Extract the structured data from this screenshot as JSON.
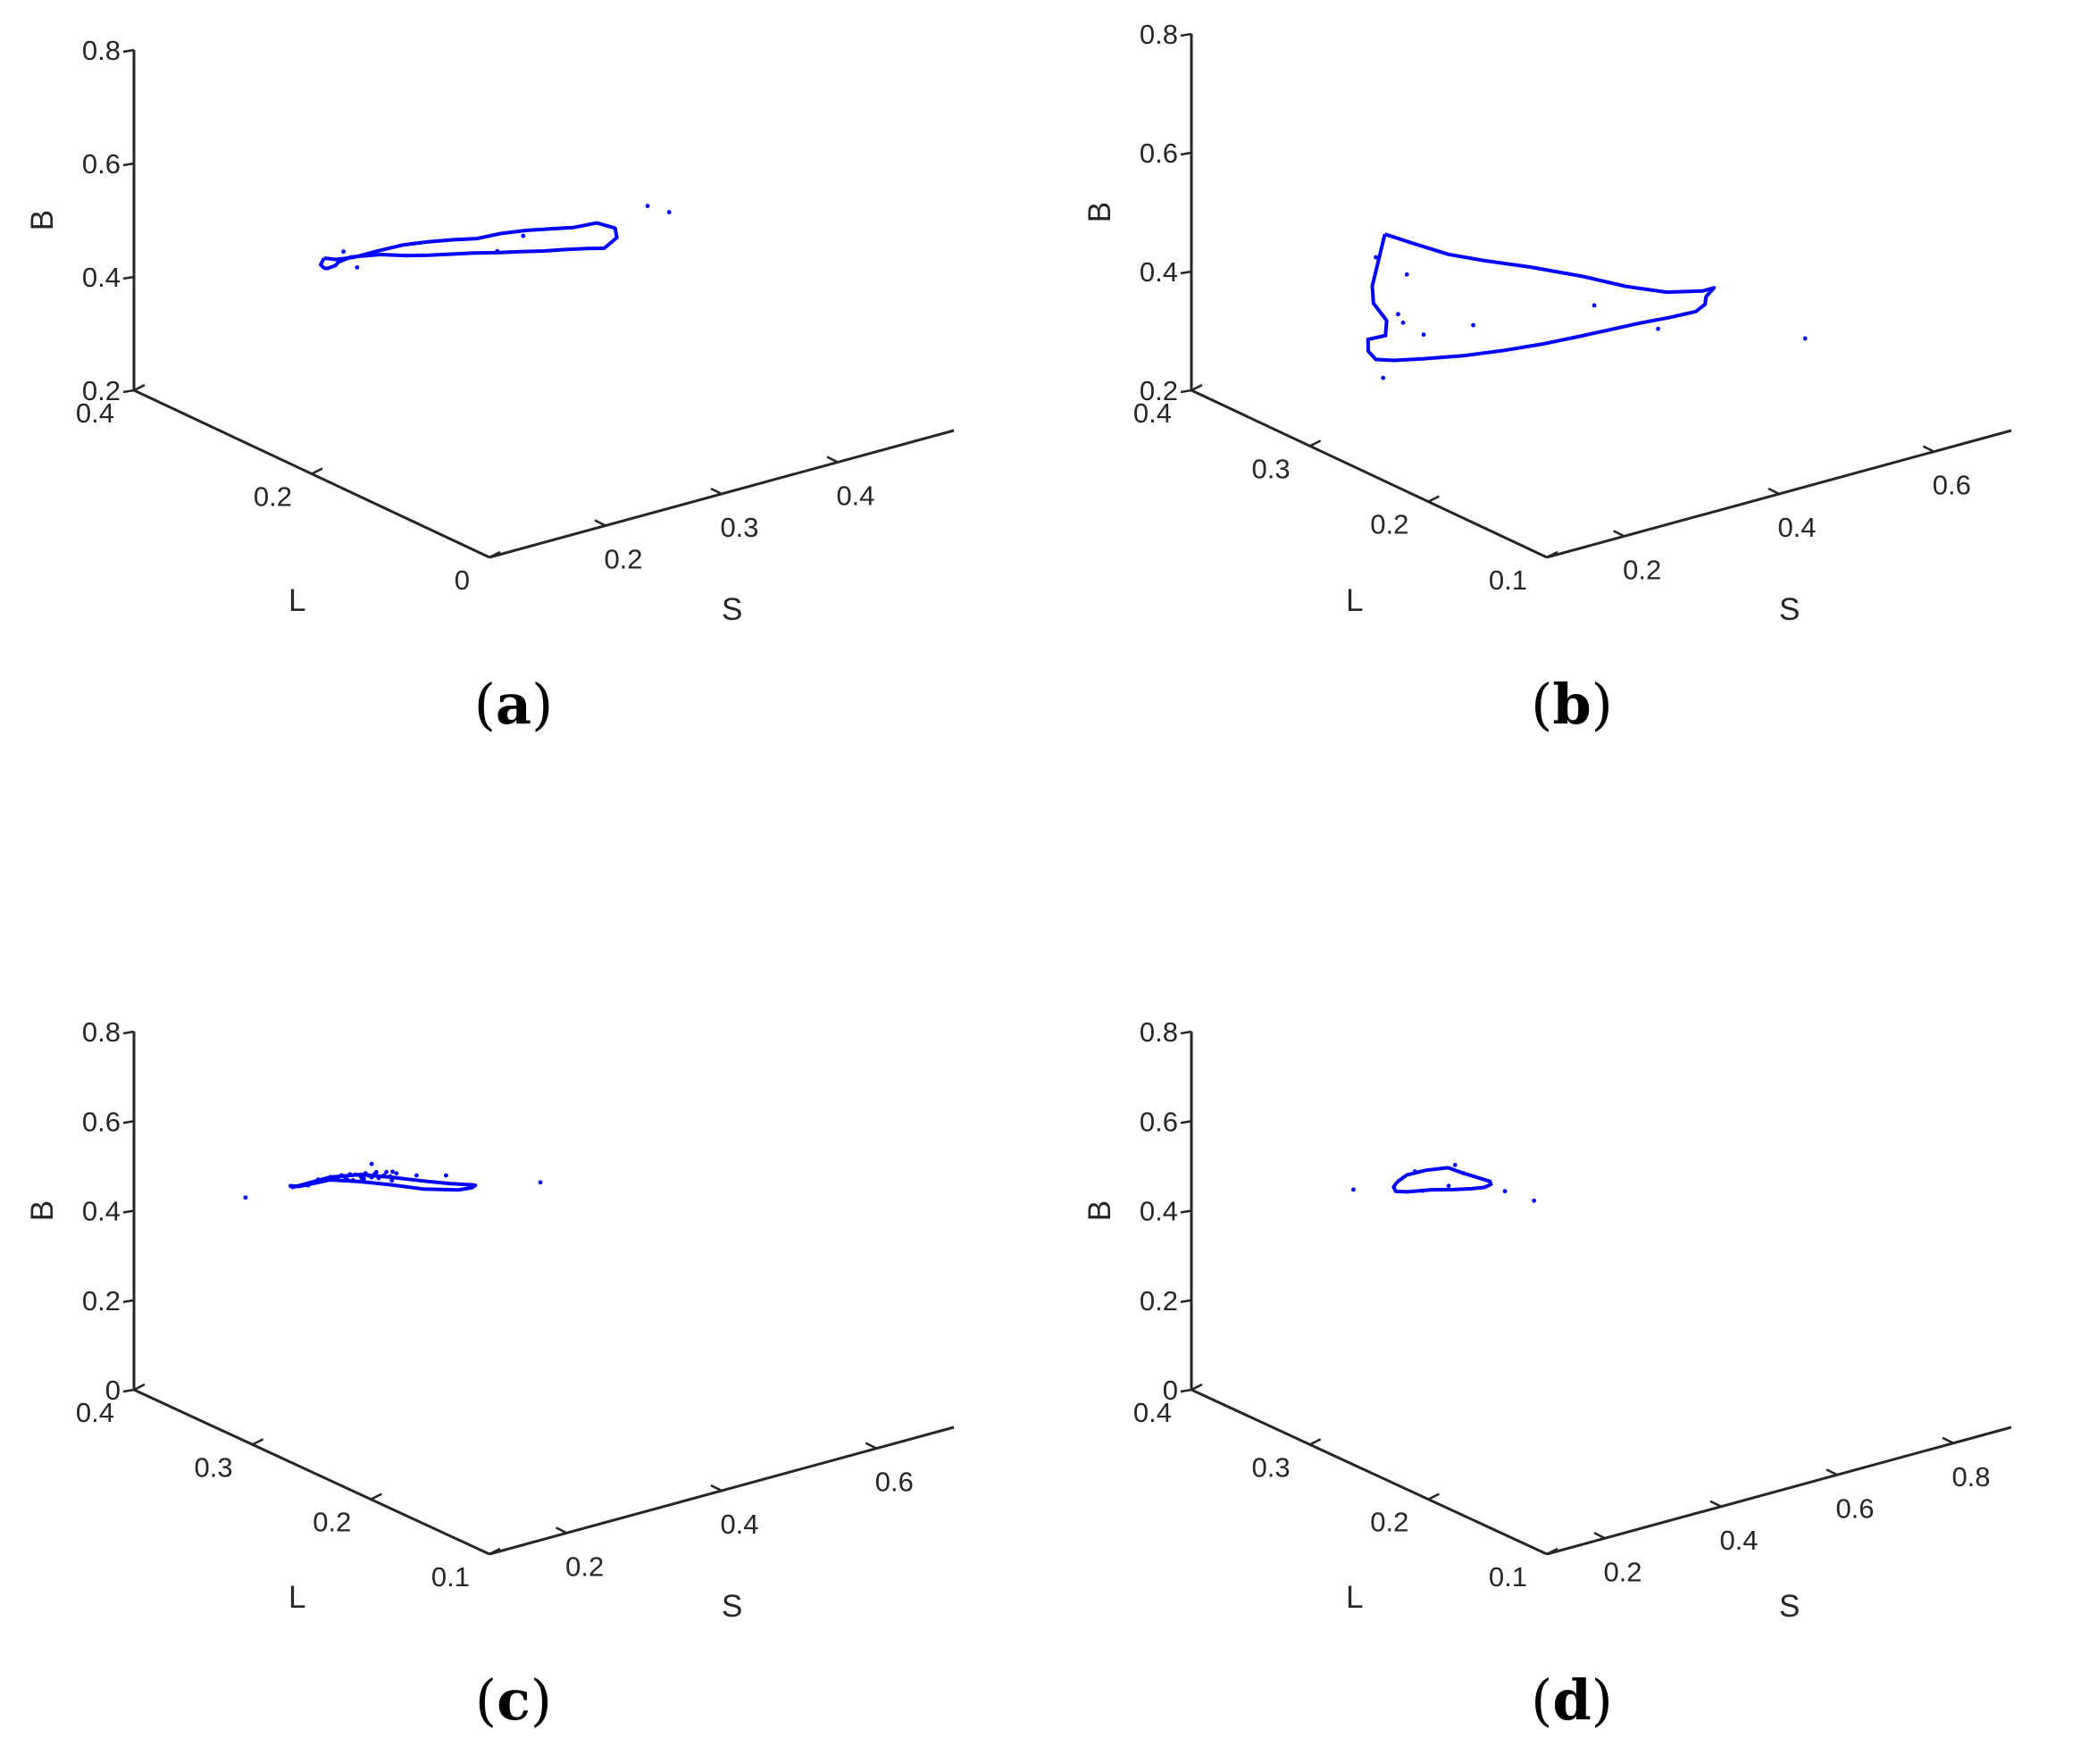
{
  "colors": {
    "series": "#0000ff",
    "axis": "#262626",
    "label": "#000000"
  },
  "chart_data": [
    {
      "type": "scatter",
      "panel_label": "a",
      "xlabel": "S",
      "ylabel": "L",
      "zlabel": "B",
      "xlim": [
        0.1,
        0.5
      ],
      "ylim": [
        0,
        0.4
      ],
      "zlim": [
        0.2,
        0.8
      ],
      "xticks": [
        {
          "v": 0.2,
          "label": "0.2"
        },
        {
          "v": 0.3,
          "label": "0.3"
        },
        {
          "v": 0.4,
          "label": "0.4"
        }
      ],
      "yticks": [
        {
          "v": 0,
          "label": "0"
        },
        {
          "v": 0.2,
          "label": "0.2"
        },
        {
          "v": 0.4,
          "label": "0.4"
        }
      ],
      "zticks": [
        {
          "v": 0.2,
          "label": "0.2"
        },
        {
          "v": 0.4,
          "label": "0.4"
        },
        {
          "v": 0.6,
          "label": "0.6"
        },
        {
          "v": 0.8,
          "label": "0.8"
        }
      ],
      "boundary_closed_curve": [
        [
          0.159,
          0.263,
          0.501
        ],
        [
          0.169,
          0.263,
          0.493
        ],
        [
          0.185,
          0.264,
          0.487
        ],
        [
          0.199,
          0.256,
          0.496
        ],
        [
          0.214,
          0.247,
          0.505
        ],
        [
          0.229,
          0.239,
          0.508
        ],
        [
          0.244,
          0.23,
          0.51
        ],
        [
          0.257,
          0.219,
          0.513
        ],
        [
          0.271,
          0.211,
          0.52
        ],
        [
          0.285,
          0.201,
          0.525
        ],
        [
          0.297,
          0.189,
          0.53
        ],
        [
          0.308,
          0.177,
          0.535
        ],
        [
          0.318,
          0.164,
          0.547
        ],
        [
          0.32,
          0.146,
          0.55
        ],
        [
          0.31,
          0.131,
          0.55
        ],
        [
          0.297,
          0.124,
          0.549
        ],
        [
          0.286,
          0.114,
          0.557
        ],
        [
          0.271,
          0.114,
          0.565
        ],
        [
          0.254,
          0.114,
          0.573
        ],
        [
          0.235,
          0.115,
          0.58
        ],
        [
          0.216,
          0.117,
          0.588
        ],
        [
          0.197,
          0.118,
          0.596
        ],
        [
          0.179,
          0.12,
          0.604
        ],
        [
          0.16,
          0.121,
          0.612
        ],
        [
          0.141,
          0.122,
          0.62
        ],
        [
          0.125,
          0.125,
          0.626
        ],
        [
          0.106,
          0.131,
          0.634
        ],
        [
          0.094,
          0.148,
          0.624
        ],
        [
          0.096,
          0.165,
          0.601
        ],
        [
          0.106,
          0.181,
          0.578
        ],
        [
          0.116,
          0.203,
          0.551
        ],
        [
          0.129,
          0.223,
          0.529
        ],
        [
          0.142,
          0.242,
          0.51
        ],
        [
          0.152,
          0.258,
          0.497
        ],
        [
          0.159,
          0.263,
          0.501
        ]
      ],
      "points": [
        [
          0.135,
          0.21,
          0.565
        ],
        [
          0.256,
          0.195,
          0.509
        ],
        [
          0.339,
          0.11,
          0.594
        ],
        [
          0.097,
          0.145,
          0.606
        ],
        [
          0.211,
          0.107,
          0.626
        ],
        [
          0.299,
          0.082,
          0.648
        ]
      ]
    },
    {
      "type": "scatter",
      "panel_label": "b",
      "xlabel": "S",
      "ylabel": "L",
      "zlabel": "B",
      "xlim": [
        0.1,
        0.7
      ],
      "ylim": [
        0.1,
        0.4
      ],
      "zlim": [
        0.2,
        0.8
      ],
      "xticks": [
        {
          "v": 0.2,
          "label": "0.2"
        },
        {
          "v": 0.4,
          "label": "0.4"
        },
        {
          "v": 0.6,
          "label": "0.6"
        }
      ],
      "yticks": [
        {
          "v": 0.1,
          "label": "0.1"
        },
        {
          "v": 0.2,
          "label": "0.2"
        },
        {
          "v": 0.3,
          "label": "0.3"
        },
        {
          "v": 0.4,
          "label": "0.4"
        }
      ],
      "zticks": [
        {
          "v": 0.2,
          "label": "0.2"
        },
        {
          "v": 0.4,
          "label": "0.4"
        },
        {
          "v": 0.6,
          "label": "0.6"
        },
        {
          "v": 0.8,
          "label": "0.8"
        }
      ],
      "boundary_closed_curve": [
        [
          0.229,
          0.321,
          0.491
        ],
        [
          0.236,
          0.302,
          0.491
        ],
        [
          0.25,
          0.281,
          0.487
        ],
        [
          0.272,
          0.266,
          0.483
        ],
        [
          0.302,
          0.246,
          0.48
        ],
        [
          0.335,
          0.223,
          0.474
        ],
        [
          0.36,
          0.203,
          0.467
        ],
        [
          0.383,
          0.184,
          0.467
        ],
        [
          0.406,
          0.168,
          0.476
        ],
        [
          0.42,
          0.168,
          0.476
        ],
        [
          0.416,
          0.172,
          0.459
        ],
        [
          0.41,
          0.169,
          0.451
        ],
        [
          0.392,
          0.165,
          0.449
        ],
        [
          0.365,
          0.169,
          0.445
        ],
        [
          0.333,
          0.174,
          0.442
        ],
        [
          0.303,
          0.182,
          0.433
        ],
        [
          0.272,
          0.188,
          0.427
        ],
        [
          0.24,
          0.196,
          0.419
        ],
        [
          0.207,
          0.206,
          0.411
        ],
        [
          0.173,
          0.217,
          0.404
        ],
        [
          0.137,
          0.229,
          0.4
        ],
        [
          0.115,
          0.239,
          0.396
        ],
        [
          0.104,
          0.247,
          0.394
        ],
        [
          0.105,
          0.254,
          0.401
        ],
        [
          0.117,
          0.262,
          0.409
        ],
        [
          0.141,
          0.263,
          0.406
        ],
        [
          0.164,
          0.277,
          0.41
        ],
        [
          0.176,
          0.296,
          0.417
        ],
        [
          0.202,
          0.314,
          0.42
        ],
        [
          0.229,
          0.321,
          0.491
        ]
      ],
      "points": [
        [
          0.112,
          0.246,
          0.361
        ],
        [
          0.142,
          0.253,
          0.451
        ],
        [
          0.149,
          0.236,
          0.43
        ],
        [
          0.15,
          0.254,
          0.433
        ],
        [
          0.199,
          0.309,
          0.474
        ],
        [
          0.213,
          0.292,
          0.456
        ],
        [
          0.236,
          0.251,
          0.401
        ],
        [
          0.299,
          0.19,
          0.469
        ],
        [
          0.36,
          0.176,
          0.421
        ],
        [
          0.452,
          0.112,
          0.432
        ]
      ]
    },
    {
      "type": "scatter",
      "panel_label": "c",
      "xlabel": "S",
      "ylabel": "L",
      "zlabel": "B",
      "xlim": [
        0.1,
        0.7
      ],
      "ylim": [
        0.1,
        0.4
      ],
      "zlim": [
        0,
        0.8
      ],
      "xticks": [
        {
          "v": 0.2,
          "label": "0.2"
        },
        {
          "v": 0.4,
          "label": "0.4"
        },
        {
          "v": 0.6,
          "label": "0.6"
        }
      ],
      "yticks": [
        {
          "v": 0.1,
          "label": "0.1"
        },
        {
          "v": 0.2,
          "label": "0.2"
        },
        {
          "v": 0.3,
          "label": "0.3"
        },
        {
          "v": 0.4,
          "label": "0.4"
        }
      ],
      "zticks": [
        {
          "v": 0,
          "label": "0"
        },
        {
          "v": 0.2,
          "label": "0.2"
        },
        {
          "v": 0.4,
          "label": "0.4"
        },
        {
          "v": 0.6,
          "label": "0.6"
        },
        {
          "v": 0.8,
          "label": "0.8"
        }
      ],
      "boundary_closed_curve": [
        [
          0.15,
          0.3,
          0.55
        ],
        [
          0.159,
          0.3,
          0.55
        ],
        [
          0.2,
          0.3,
          0.55
        ],
        [
          0.24,
          0.3,
          0.537
        ],
        [
          0.2784,
          0.3,
          0.513
        ],
        [
          0.32,
          0.3,
          0.485
        ],
        [
          0.356,
          0.3,
          0.462
        ],
        [
          0.384,
          0.3,
          0.446
        ],
        [
          0.388,
          0.3,
          0.443
        ],
        [
          0.384,
          0.3,
          0.44
        ],
        [
          0.366,
          0.3,
          0.443
        ],
        [
          0.32,
          0.3,
          0.467
        ],
        [
          0.28,
          0.3,
          0.495
        ],
        [
          0.24,
          0.3,
          0.521
        ],
        [
          0.2,
          0.3,
          0.544
        ],
        [
          0.16,
          0.3,
          0.548
        ],
        [
          0.149,
          0.3,
          0.555
        ],
        [
          0.15,
          0.3,
          0.55
        ]
      ],
      "points": [
        [
          0.091,
          0.3,
          0.556
        ],
        [
          0.172,
          0.3,
          0.545
        ],
        [
          0.185,
          0.3,
          0.552
        ],
        [
          0.201,
          0.3,
          0.55
        ],
        [
          0.2,
          0.3,
          0.545
        ],
        [
          0.21,
          0.3,
          0.54
        ],
        [
          0.215,
          0.3,
          0.547
        ],
        [
          0.22,
          0.3,
          0.536
        ],
        [
          0.223,
          0.3,
          0.533
        ],
        [
          0.226,
          0.3,
          0.544
        ],
        [
          0.23,
          0.3,
          0.529
        ],
        [
          0.233,
          0.3,
          0.54
        ],
        [
          0.239,
          0.3,
          0.535
        ],
        [
          0.241,
          0.3,
          0.529
        ],
        [
          0.244,
          0.3,
          0.526
        ],
        [
          0.246,
          0.3,
          0.537
        ],
        [
          0.25,
          0.3,
          0.53
        ],
        [
          0.254,
          0.3,
          0.524
        ],
        [
          0.258,
          0.3,
          0.53
        ],
        [
          0.263,
          0.3,
          0.518
        ],
        [
          0.26,
          0.3,
          0.533
        ],
        [
          0.27,
          0.3,
          0.521
        ],
        [
          0.273,
          0.3,
          0.527
        ],
        [
          0.278,
          0.3,
          0.515
        ],
        [
          0.281,
          0.3,
          0.524
        ],
        [
          0.286,
          0.3,
          0.518
        ],
        [
          0.28,
          0.3,
          0.505
        ],
        [
          0.312,
          0.3,
          0.501
        ],
        [
          0.35,
          0.3,
          0.483
        ],
        [
          0.254,
          0.3,
          0.554
        ],
        [
          0.472,
          0.3,
          0.41
        ]
      ]
    },
    {
      "type": "scatter",
      "panel_label": "d",
      "xlabel": "S",
      "ylabel": "L",
      "zlabel": "B",
      "xlim": [
        0.1,
        0.9
      ],
      "ylim": [
        0.1,
        0.4
      ],
      "zlim": [
        0,
        0.8
      ],
      "xticks": [
        {
          "v": 0.2,
          "label": "0.2"
        },
        {
          "v": 0.4,
          "label": "0.4"
        },
        {
          "v": 0.6,
          "label": "0.6"
        },
        {
          "v": 0.8,
          "label": "0.8"
        }
      ],
      "yticks": [
        {
          "v": 0.1,
          "label": "0.1"
        },
        {
          "v": 0.2,
          "label": "0.2"
        },
        {
          "v": 0.3,
          "label": "0.3"
        },
        {
          "v": 0.4,
          "label": "0.4"
        }
      ],
      "zticks": [
        {
          "v": 0,
          "label": "0"
        },
        {
          "v": 0.2,
          "label": "0.2"
        },
        {
          "v": 0.4,
          "label": "0.4"
        },
        {
          "v": 0.6,
          "label": "0.6"
        },
        {
          "v": 0.8,
          "label": "0.8"
        }
      ],
      "boundary_closed_curve": [
        [
          0.25,
          0.3,
          0.533
        ],
        [
          0.2667,
          0.3,
          0.543
        ],
        [
          0.3,
          0.3,
          0.542
        ],
        [
          0.338,
          0.3,
          0.534
        ],
        [
          0.3623,
          0.3,
          0.514
        ],
        [
          0.393,
          0.3,
          0.491
        ],
        [
          0.41,
          0.3,
          0.478
        ],
        [
          0.412,
          0.3,
          0.471
        ],
        [
          0.4,
          0.3,
          0.468
        ],
        [
          0.378,
          0.3,
          0.473
        ],
        [
          0.347,
          0.3,
          0.482
        ],
        [
          0.309,
          0.3,
          0.495
        ],
        [
          0.268,
          0.3,
          0.505
        ],
        [
          0.248,
          0.3,
          0.513
        ],
        [
          0.244,
          0.3,
          0.524
        ],
        [
          0.25,
          0.3,
          0.533
        ]
      ],
      "points": [
        [
          0.175,
          0.3,
          0.543
        ],
        [
          0.281,
          0.3,
          0.546
        ],
        [
          0.294,
          0.3,
          0.498
        ],
        [
          0.339,
          0.3,
          0.493
        ],
        [
          0.35,
          0.3,
          0.536
        ],
        [
          0.365,
          0.3,
          0.512
        ],
        [
          0.436,
          0.3,
          0.447
        ],
        [
          0.486,
          0.3,
          0.408
        ]
      ]
    }
  ]
}
